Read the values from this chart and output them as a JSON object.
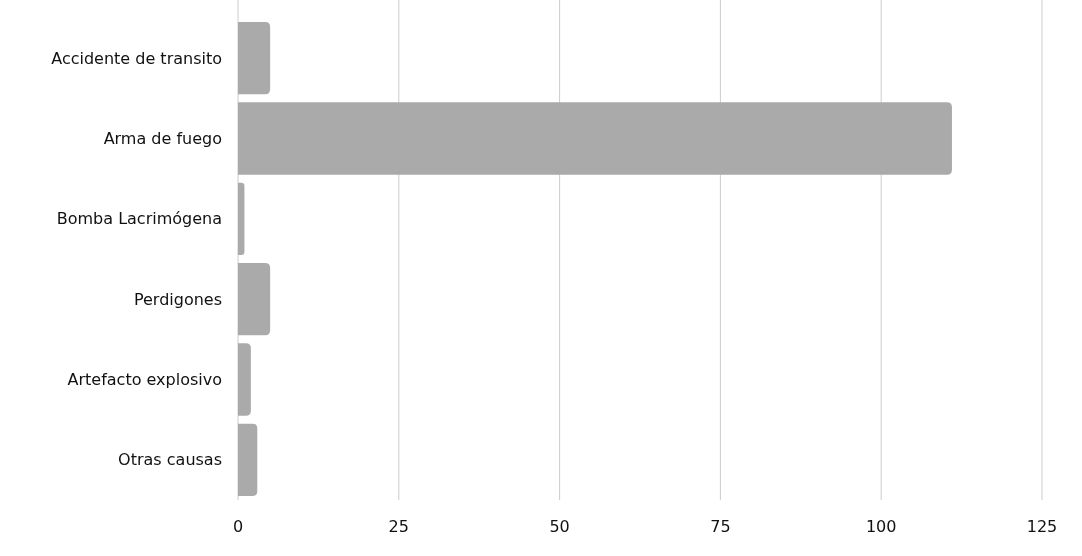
{
  "chart_data": {
    "type": "bar",
    "orientation": "horizontal",
    "categories": [
      "Accidente de transito",
      "Arma de fuego",
      "Bomba Lacrimógena",
      "Perdigones",
      "Artefacto explosivo",
      "Otras causas"
    ],
    "values": [
      5,
      111,
      1,
      5,
      2,
      3
    ],
    "color": "#aaaaaa",
    "xlim": [
      0,
      125
    ],
    "xticks": [
      0,
      25,
      50,
      75,
      100,
      125
    ],
    "grid": "x"
  }
}
